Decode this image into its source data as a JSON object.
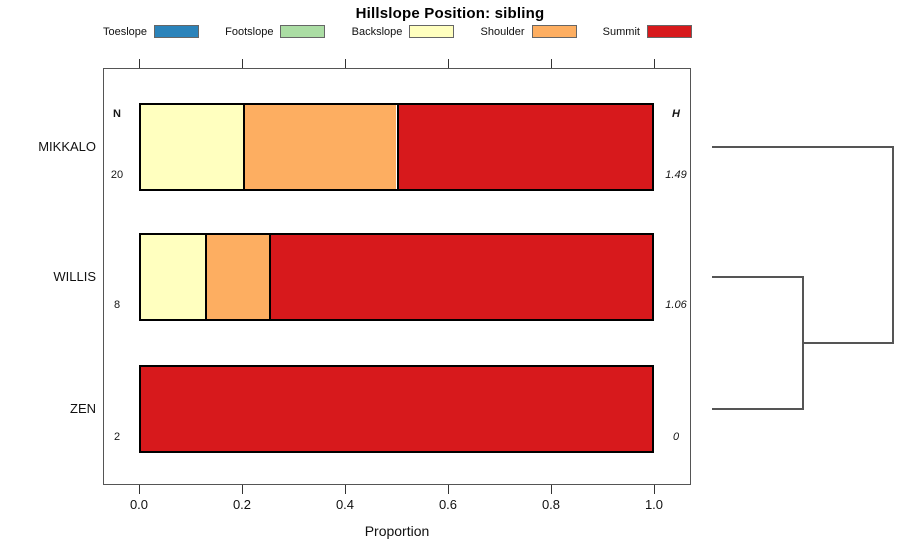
{
  "chart_data": {
    "type": "bar",
    "subtype": "horizontal-stacked-proportion",
    "title": "Hillslope Position: sibling",
    "xlabel": "Proportion",
    "xlim": [
      0,
      1.04
    ],
    "grid": false,
    "legend_position": "top",
    "x_ticks": [
      0,
      0.2,
      0.4,
      0.6,
      0.8,
      1.0
    ],
    "x_tick_labels": [
      "0.0",
      "0.2",
      "0.4",
      "0.6",
      "0.8",
      "1.0"
    ],
    "legend": [
      {
        "label": "Toeslope",
        "color": "#2B83BA"
      },
      {
        "label": "Footslope",
        "color": "#ABDDA4"
      },
      {
        "label": "Backslope",
        "color": "#FFFFBF"
      },
      {
        "label": "Shoulder",
        "color": "#FDAE61"
      },
      {
        "label": "Summit",
        "color": "#D7191C"
      }
    ],
    "col_headers": {
      "n": "N",
      "h": "H"
    },
    "rows": [
      {
        "label": "MIKKALO",
        "n": "20",
        "h": "1.49",
        "segments": [
          {
            "name": "Backslope",
            "value": 0.2
          },
          {
            "name": "Shoulder",
            "value": 0.3
          },
          {
            "name": "Summit",
            "value": 0.5
          }
        ]
      },
      {
        "label": "WILLIS",
        "n": "8",
        "h": "1.06",
        "segments": [
          {
            "name": "Backslope",
            "value": 0.125
          },
          {
            "name": "Shoulder",
            "value": 0.125
          },
          {
            "name": "Summit",
            "value": 0.75
          }
        ]
      },
      {
        "label": "ZEN",
        "n": "2",
        "h": "0",
        "segments": [
          {
            "name": "Summit",
            "value": 1.0
          }
        ]
      }
    ],
    "dendrogram": {
      "leaf_order": [
        "MIKKALO",
        "WILLIS",
        "ZEN"
      ],
      "merges": [
        {
          "children": [
            "WILLIS",
            "ZEN"
          ],
          "height_frac": 0.503
        },
        {
          "children": [
            "merge:0",
            "MIKKALO"
          ],
          "height_frac": 1.0
        }
      ]
    }
  }
}
